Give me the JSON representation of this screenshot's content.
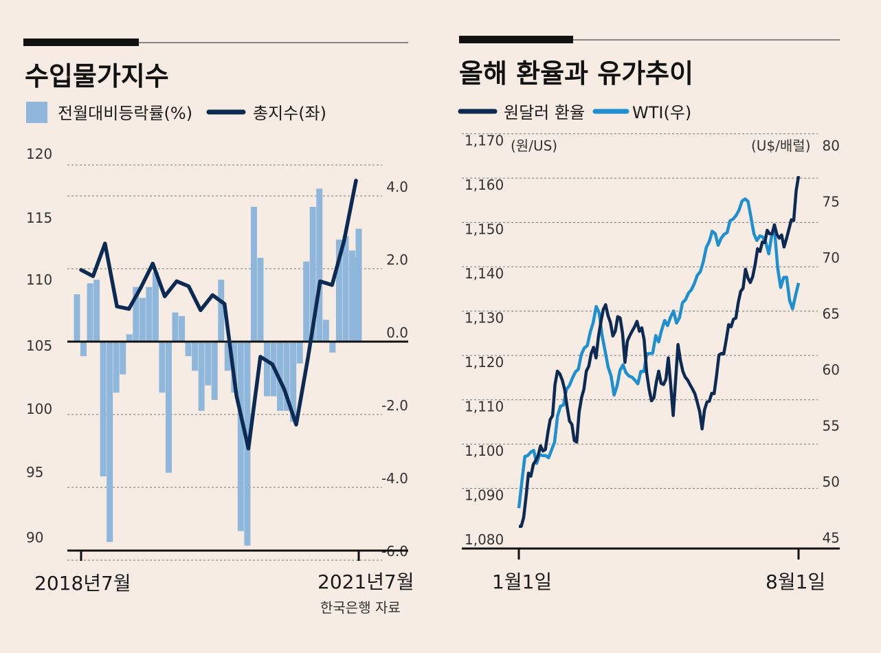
{
  "colors": {
    "background": "#f6ece3",
    "bar_light_blue": "#8fb7dc",
    "line_navy": "#0d2b52",
    "line_sky": "#1f8fd0",
    "accent_black": "#111111"
  },
  "chart_data": [
    {
      "type": "bar",
      "title": "수입물가지수",
      "legend": [
        {
          "name": "전월대비등락률(%)",
          "marker": "square"
        },
        {
          "name": "총지수(좌)",
          "marker": "line"
        }
      ],
      "left_axis": {
        "ticks": [
          "120",
          "115",
          "110",
          "105",
          "100",
          "95",
          "90"
        ],
        "range": [
          90,
          120
        ]
      },
      "right_axis": {
        "ticks": [
          "4.0",
          "2.0",
          "0.0",
          "-2.0",
          "-4.0",
          "-6.0"
        ],
        "range": [
          -6,
          6
        ]
      },
      "x_labels": {
        "start": "2018년7월",
        "end": "2021년7월"
      },
      "source": "한국은행 자료",
      "grid": true,
      "series": [
        {
          "name": "전월대비등락률(%)",
          "axis": "right",
          "values": [
            1.3,
            -0.4,
            1.6,
            1.7,
            -3.7,
            -5.5,
            -1.4,
            -0.9,
            0.2,
            1.5,
            1.2,
            1.5,
            1.9,
            -1.4,
            -3.6,
            0.8,
            0.7,
            -0.4,
            -0.8,
            -1.9,
            -1.2,
            -1.6,
            1.7,
            -0.8,
            -1.4,
            -5.2,
            -5.6,
            3.7,
            2.3,
            -1.5,
            -1.5,
            -1.9,
            -1.9,
            -2.2,
            -0.6,
            2.2,
            3.7,
            4.2,
            0.6,
            -0.3,
            2.8,
            2.9,
            2.5,
            3.1
          ],
          "values_secondary": [
            null,
            null,
            null,
            null,
            null,
            null,
            null,
            null,
            null,
            null,
            null,
            null,
            null,
            null,
            null,
            null,
            null,
            null,
            null,
            null,
            null,
            null,
            null,
            null,
            null,
            null,
            null,
            null,
            null,
            null,
            null,
            null,
            null,
            null,
            null,
            null,
            null,
            null,
            null,
            null,
            null,
            null,
            null,
            2.3
          ]
        },
        {
          "name": "총지수(좌)",
          "axis": "left",
          "values": [
            110.7,
            110.2,
            112.8,
            107.8,
            107.6,
            109.3,
            111.2,
            108.6,
            109.8,
            109.4,
            107.5,
            108.7,
            108.0,
            100.7,
            96.5,
            103.8,
            103.2,
            101.2,
            98.4,
            103.8,
            109.8,
            109.5,
            113.0,
            117.8
          ]
        }
      ]
    },
    {
      "type": "line",
      "title": "올해 환율과 유가추이",
      "legend": [
        {
          "name": "원달러 환율",
          "marker": "line"
        },
        {
          "name": "WTI(우)",
          "marker": "line"
        }
      ],
      "left_axis": {
        "unit": "(원/US)",
        "ticks": [
          "1,170",
          "1,160",
          "1,150",
          "1,140",
          "1,130",
          "1,120",
          "1,110",
          "1,100",
          "1,090",
          "1,080"
        ],
        "range": [
          1078,
          1170
        ]
      },
      "right_axis": {
        "unit": "(U$/배럴)",
        "ticks": [
          "80",
          "75",
          "70",
          "65",
          "60",
          "55",
          "50",
          "45"
        ],
        "range": [
          44,
          80
        ]
      },
      "x_labels": {
        "start": "1월1일",
        "end": "8월1일"
      },
      "grid": true,
      "series": [
        {
          "name": "원달러 환율",
          "axis": "left",
          "values": [
            1083,
            1085,
            1095,
            1097,
            1099,
            1100,
            1104,
            1108,
            1118,
            1116,
            1110,
            1106,
            1102,
            1112,
            1118,
            1122,
            1121,
            1129,
            1133,
            1129,
            1127,
            1130,
            1120,
            1126,
            1128,
            1127,
            1125,
            1114,
            1112,
            1118,
            1115,
            1121,
            1108,
            1124,
            1118,
            1116,
            1114,
            1111,
            1105,
            1111,
            1113,
            1117,
            1122,
            1125,
            1128,
            1130,
            1136,
            1141,
            1138,
            1142,
            1145,
            1147,
            1149,
            1151,
            1148,
            1146,
            1150,
            1152,
            1162
          ]
        },
        {
          "name": "WTI(우)",
          "axis": "right",
          "values": [
            47.6,
            52.2,
            52.6,
            51.6,
            52.3,
            52.1,
            53.5,
            56.7,
            58.2,
            59.2,
            60.0,
            61.9,
            63.3,
            65.6,
            63.0,
            60.2,
            57.7,
            59.9,
            59.7,
            59.3,
            58.7,
            59.8,
            61.4,
            63.0,
            63.5,
            63.9,
            65.2,
            64.6,
            66.2,
            67.1,
            68.4,
            69.6,
            71.4,
            72.1,
            71.7,
            72.2,
            73.4,
            74.2,
            75.2,
            73.6,
            71.5,
            71.8,
            70.3,
            72.2,
            67.3,
            68.2,
            65.4,
            67.7
          ]
        }
      ]
    }
  ]
}
